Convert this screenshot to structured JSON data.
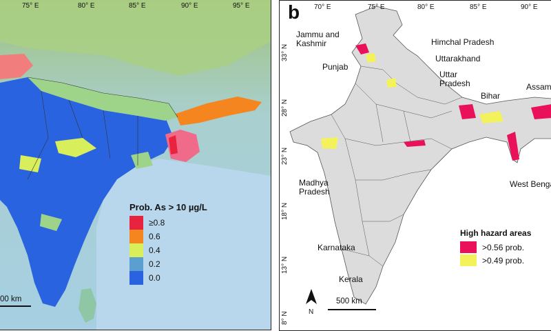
{
  "panel_a": {
    "lon_ticks": [
      "75° E",
      "80° E",
      "85° E",
      "90° E",
      "95° E"
    ],
    "legend_title": "Prob. As > 10 µg/L",
    "legend": [
      {
        "label": "≥0.8",
        "color": "#e8233f"
      },
      {
        "label": "0.6",
        "color": "#f5851f"
      },
      {
        "label": "0.4",
        "color": "#d9ee5b"
      },
      {
        "label": "0.2",
        "color": "#5b9fd0"
      },
      {
        "label": "0.0",
        "color": "#2a63e0"
      }
    ],
    "scale_label": "00 km",
    "colors": {
      "low": "#2a63e0",
      "light": "#9dc4dc",
      "mid": "#5b9fd0",
      "yellow": "#d9ee5b",
      "green": "#9ed48a",
      "orange": "#f5851f",
      "red": "#e8233f"
    }
  },
  "panel_b": {
    "letter": "b",
    "lon_ticks": [
      "70° E",
      "75° E",
      "80° E",
      "85° E",
      "90° E"
    ],
    "lat_ticks": [
      "33° N",
      "28° N",
      "23° N",
      "18° N",
      "13° N",
      "8° N"
    ],
    "states": {
      "jammu": "Jammu and\nKashmir",
      "himachal": "Himchal Pradesh",
      "uttarakhand": "Uttarakhand",
      "punjab": "Punjab",
      "uttar": "Uttar\nPradesh",
      "bihar": "Bihar",
      "assam": "Assam",
      "madhya": "Madhya\nPradesh",
      "west_bengal": "West Bengal",
      "karnataka": "Karnataka",
      "kerala": "Kerala"
    },
    "legend_title": "High hazard areas",
    "legend": [
      {
        "label": ">0.56 prob.",
        "color": "#e8115a"
      },
      {
        "label": ">0.49 prob.",
        "color": "#f4f25a"
      }
    ],
    "scale_label": "500 km",
    "north_label": "N",
    "map_fill": "#dcdcdc"
  }
}
